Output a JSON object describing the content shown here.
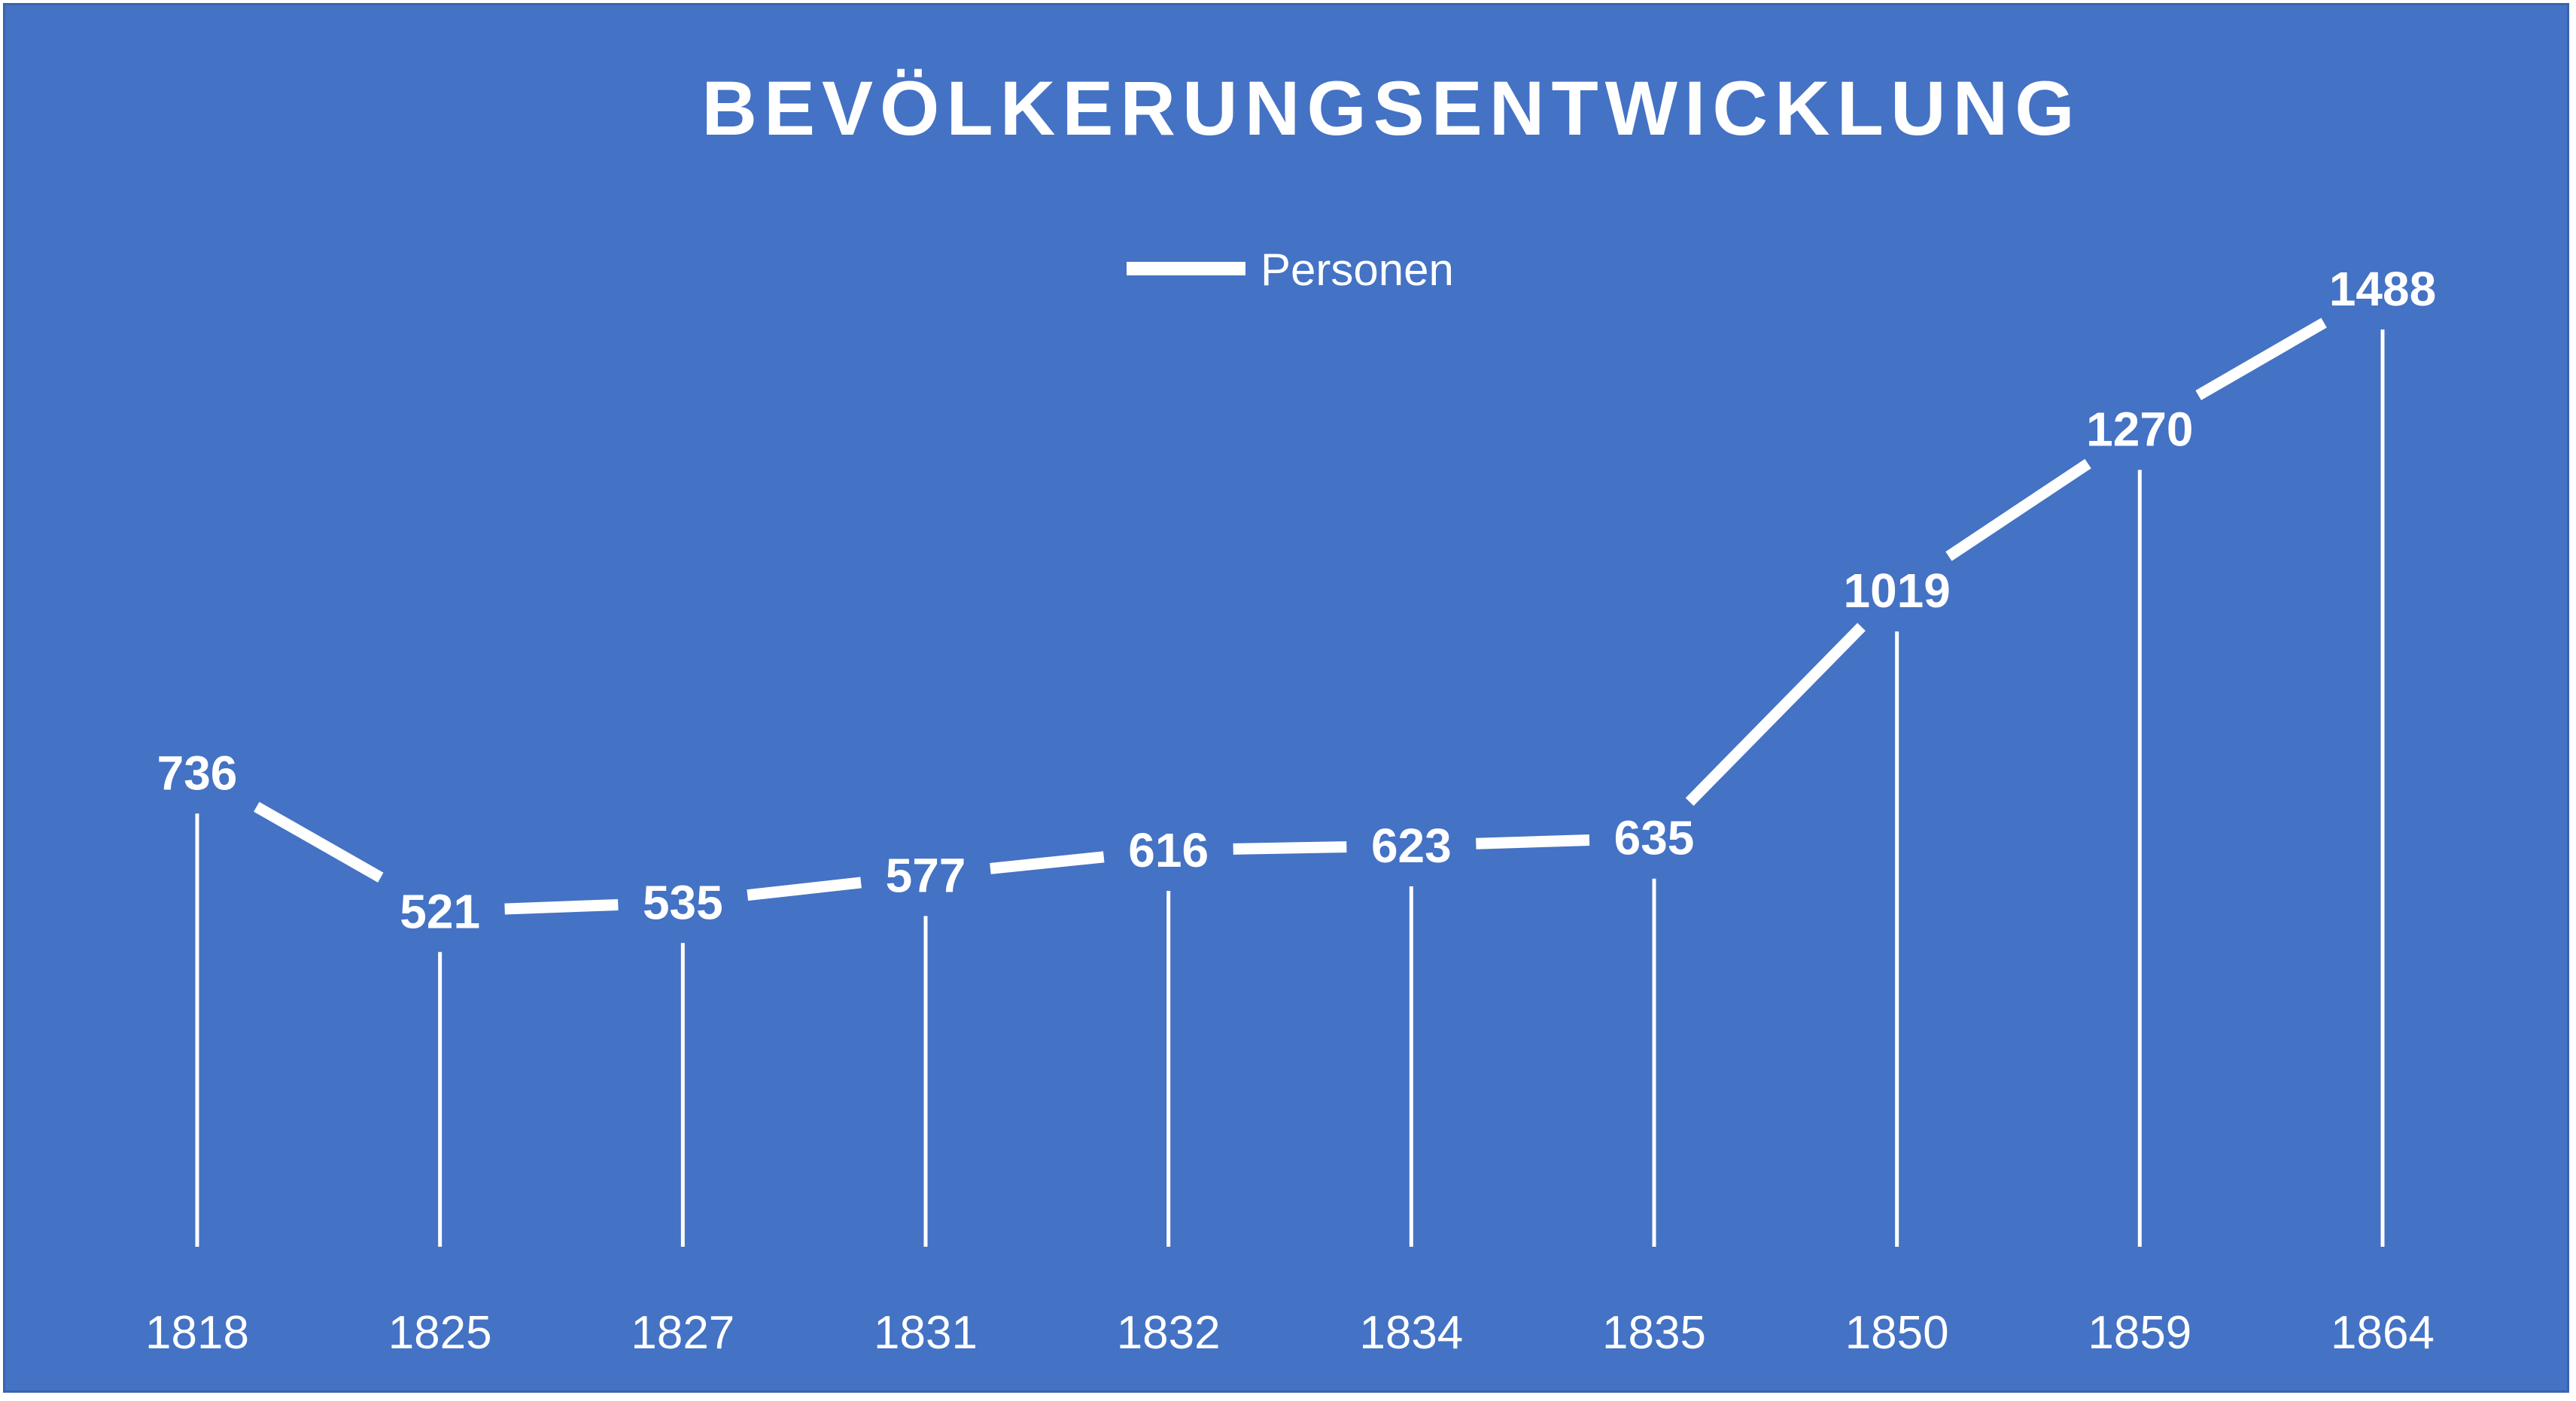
{
  "chart_data": {
    "type": "line",
    "title": "BEVÖLKERUNGSENTWICKLUNG",
    "categories": [
      "1818",
      "1825",
      "1827",
      "1831",
      "1832",
      "1834",
      "1835",
      "1850",
      "1859",
      "1864"
    ],
    "series": [
      {
        "name": "Personen",
        "values": [
          736,
          521,
          535,
          577,
          616,
          623,
          635,
          1019,
          1270,
          1488
        ]
      }
    ],
    "xlabel": "",
    "ylabel": "",
    "ylim": [
      0,
      1800
    ],
    "grid": false,
    "drop_lines": true,
    "data_labels": true,
    "legend_position": "top",
    "colors": {
      "background": "#4472C4",
      "line": "#FFFFFF",
      "text": "#FFFFFF"
    }
  }
}
